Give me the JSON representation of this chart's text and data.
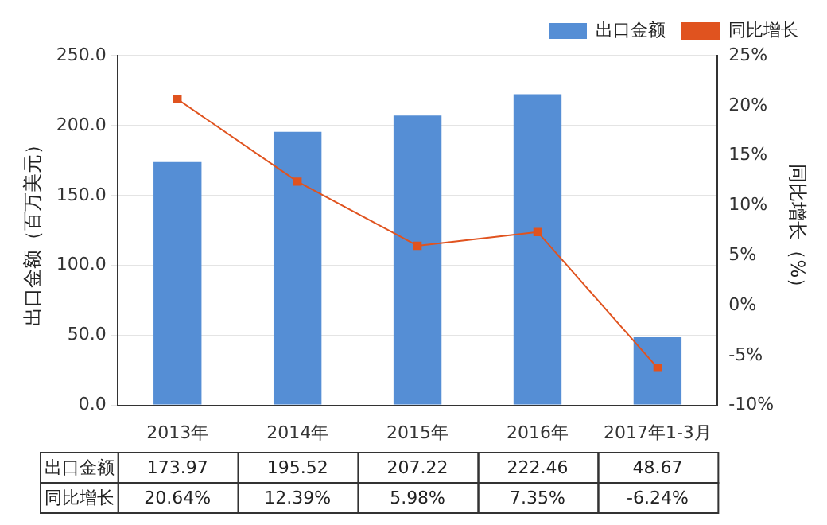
{
  "chart_data": {
    "type": "bar",
    "categories": [
      "2013年",
      "2014年",
      "2015年",
      "2016年",
      "2017年1-3月"
    ],
    "series": [
      {
        "name": "出口金额",
        "color": "#558ed5",
        "values": [
          173.97,
          195.52,
          207.22,
          222.46,
          48.67
        ],
        "value_labels": [
          "173.97",
          "195.52",
          "207.22",
          "222.46",
          "48.67"
        ]
      },
      {
        "name": "同比增长",
        "type": "line",
        "axis": "y2",
        "color": "#e0531f",
        "marker": "square",
        "values": [
          20.64,
          12.39,
          5.98,
          7.35,
          -6.24
        ],
        "value_labels": [
          "20.64%",
          "12.39%",
          "5.98%",
          "7.35%",
          "-6.24%"
        ]
      }
    ],
    "ylabel": "出口金额（百万美元）",
    "y2label": "同比增长（%）",
    "ylim": [
      0,
      250
    ],
    "yticks": [
      {
        "value": 0,
        "label": "0.0"
      },
      {
        "value": 50,
        "label": "50.0"
      },
      {
        "value": 100,
        "label": "100.0"
      },
      {
        "value": 150,
        "label": "150.0"
      },
      {
        "value": 200,
        "label": "200.0"
      },
      {
        "value": 250,
        "label": "250.0"
      }
    ],
    "y2lim": [
      -10,
      25
    ],
    "y2ticks": [
      {
        "value": -10,
        "label": "-10%"
      },
      {
        "value": -5,
        "label": "-5%"
      },
      {
        "value": 0,
        "label": "0%"
      },
      {
        "value": 5,
        "label": "5%"
      },
      {
        "value": 10,
        "label": "10%"
      },
      {
        "value": 15,
        "label": "15%"
      },
      {
        "value": 20,
        "label": "20%"
      },
      {
        "value": 25,
        "label": "25%"
      }
    ],
    "grid": "y",
    "legend": "top right"
  }
}
